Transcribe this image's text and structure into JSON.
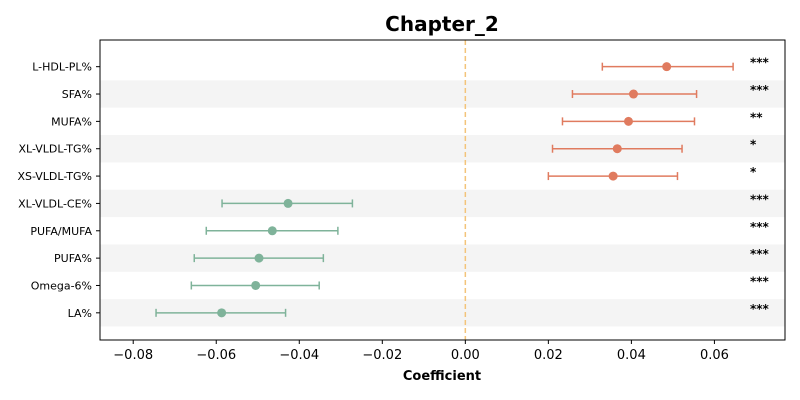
{
  "chart_data": {
    "type": "forest",
    "title": "Chapter_2",
    "xlabel": "Coefficient",
    "xlim": [
      -0.088,
      0.077
    ],
    "x_ticks": [
      -0.08,
      -0.06,
      -0.04,
      -0.02,
      0.0,
      0.02,
      0.04,
      0.06
    ],
    "x_tick_labels": [
      "−0.08",
      "−0.06",
      "−0.04",
      "−0.02",
      "0.00",
      "0.02",
      "0.04",
      "0.06"
    ],
    "reference_line": 0,
    "colors": {
      "positive": "#e07b5f",
      "negative": "#7fb39a",
      "reference": "#f3c47a",
      "stripe": "#f4f4f4"
    },
    "series": [
      {
        "label": "L-HDL-PL%",
        "estimate": 0.0485,
        "ci_low": 0.033,
        "ci_high": 0.0645,
        "significance": "***",
        "direction": "positive"
      },
      {
        "label": "SFA%",
        "estimate": 0.0405,
        "ci_low": 0.0258,
        "ci_high": 0.0557,
        "significance": "***",
        "direction": "positive"
      },
      {
        "label": "MUFA%",
        "estimate": 0.0393,
        "ci_low": 0.0234,
        "ci_high": 0.0552,
        "significance": "**",
        "direction": "positive"
      },
      {
        "label": "XL-VLDL-TG%",
        "estimate": 0.0366,
        "ci_low": 0.021,
        "ci_high": 0.0522,
        "significance": "*",
        "direction": "positive"
      },
      {
        "label": "XS-VLDL-TG%",
        "estimate": 0.0356,
        "ci_low": 0.02,
        "ci_high": 0.0511,
        "significance": "*",
        "direction": "positive"
      },
      {
        "label": "XL-VLDL-CE%",
        "estimate": -0.0427,
        "ci_low": -0.0586,
        "ci_high": -0.0272,
        "significance": "***",
        "direction": "negative"
      },
      {
        "label": "PUFA/MUFA",
        "estimate": -0.0465,
        "ci_low": -0.0624,
        "ci_high": -0.0307,
        "significance": "***",
        "direction": "negative"
      },
      {
        "label": "PUFA%",
        "estimate": -0.0497,
        "ci_low": -0.0653,
        "ci_high": -0.0342,
        "significance": "***",
        "direction": "negative"
      },
      {
        "label": "Omega-6%",
        "estimate": -0.0505,
        "ci_low": -0.066,
        "ci_high": -0.0352,
        "significance": "***",
        "direction": "negative"
      },
      {
        "label": "LA%",
        "estimate": -0.0587,
        "ci_low": -0.0745,
        "ci_high": -0.0433,
        "significance": "***",
        "direction": "negative"
      }
    ]
  }
}
